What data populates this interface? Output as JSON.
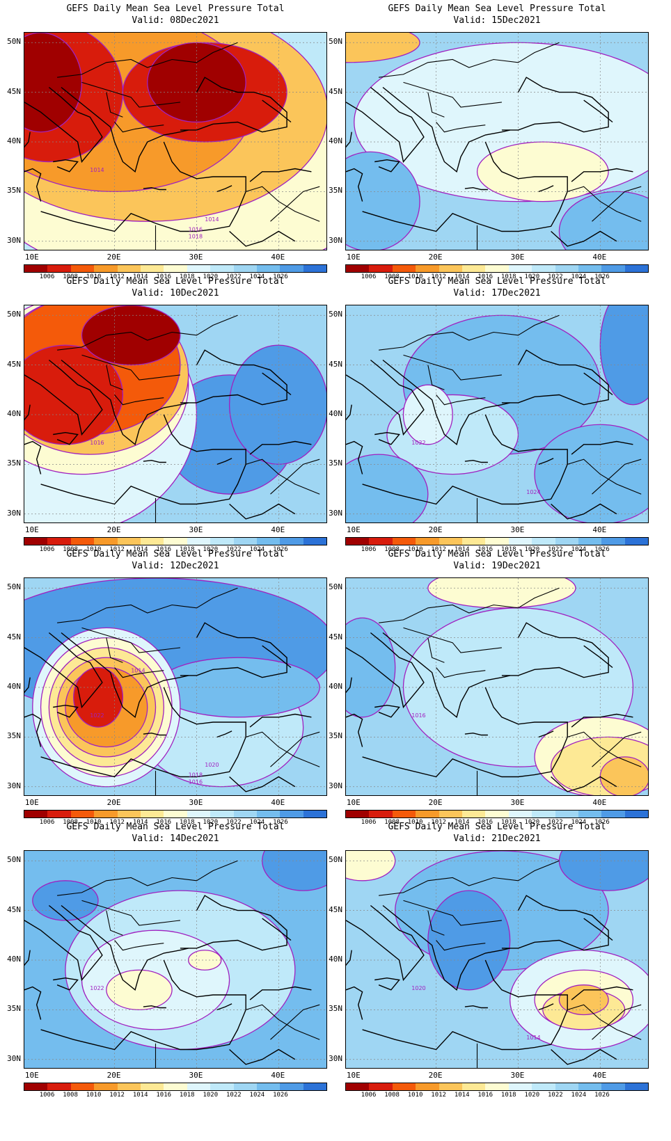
{
  "title_text": "GEFS Daily Mean Sea Level Pressure Total",
  "colorbar": {
    "colors": [
      "#a00000",
      "#d81c0c",
      "#f45a0a",
      "#f79a2a",
      "#fbc55a",
      "#fde995",
      "#fdfcd2",
      "#dff6fc",
      "#bfe9f9",
      "#9fd6f3",
      "#74bdee",
      "#4f9be6",
      "#2c72d7"
    ],
    "labels": [
      "1006",
      "1008",
      "1010",
      "1012",
      "1014",
      "1016",
      "1018",
      "1020",
      "1022",
      "1024",
      "1026"
    ]
  },
  "axes": {
    "lat_labels": [
      "50N",
      "45N",
      "40N",
      "35N",
      "30N"
    ],
    "lon_labels": [
      "10E",
      "20E",
      "30E",
      "40E"
    ],
    "lat_range": [
      29,
      51
    ],
    "lon_range": [
      9,
      46
    ]
  },
  "contour_color": "#a020c0",
  "panels": [
    {
      "valid": "Valid: 08Dec2021",
      "labels": [
        "1014",
        "1014",
        "1016",
        "1018"
      ],
      "regime": "low-north"
    },
    {
      "valid": "Valid: 15Dec2021",
      "labels": [],
      "regime": "mild-high"
    },
    {
      "valid": "Valid: 10Dec2021",
      "labels": [
        "1016"
      ],
      "regime": "low-west"
    },
    {
      "valid": "Valid: 17Dec2021",
      "labels": [
        "1022",
        "1024"
      ],
      "regime": "high"
    },
    {
      "valid": "Valid: 12Dec2021",
      "labels": [
        "1022",
        "1020",
        "1018",
        "1016",
        "1014"
      ],
      "regime": "low-ionian"
    },
    {
      "valid": "Valid: 19Dec2021",
      "labels": [
        "1016"
      ],
      "regime": "low-se"
    },
    {
      "valid": "Valid: 14Dec2021",
      "labels": [
        "1022"
      ],
      "regime": "weak-low-crete"
    },
    {
      "valid": "Valid: 21Dec2021",
      "labels": [
        "1020",
        "1014"
      ],
      "regime": "low-levant"
    }
  ]
}
